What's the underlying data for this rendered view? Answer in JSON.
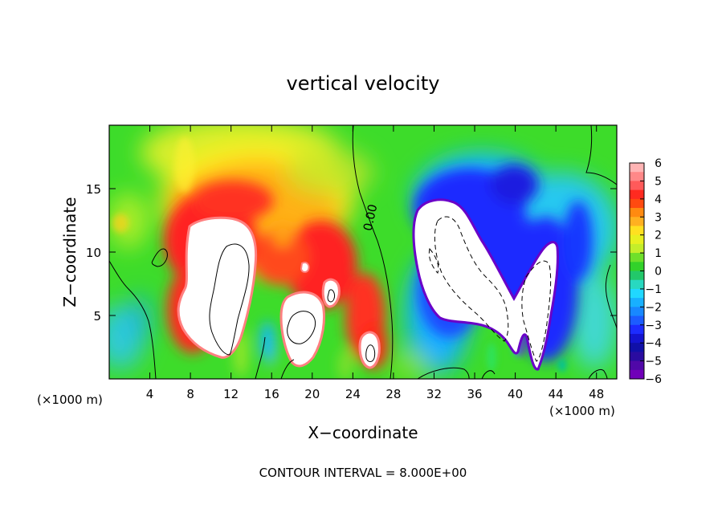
{
  "chart_data": {
    "type": "heatmap",
    "title": "vertical velocity",
    "xlabel": "X−coordinate",
    "ylabel": "Z−coordinate",
    "x_unit_label": "(×1000 m)",
    "z_unit_label": "(×1000 m)",
    "xlim": [
      0,
      50
    ],
    "ylim": [
      0,
      20
    ],
    "x_ticks": [
      4,
      8,
      12,
      16,
      20,
      24,
      28,
      32,
      36,
      40,
      44,
      48
    ],
    "y_ticks": [
      5,
      10,
      15
    ],
    "colorbar": {
      "ticks": [
        "6",
        "5",
        "4",
        "3",
        "2",
        "1",
        "0",
        "−1",
        "−2",
        "−3",
        "−4",
        "−5",
        "−6"
      ],
      "range": [
        -6,
        6
      ]
    },
    "contour_label": "0.00",
    "footnote": "CONTOUR INTERVAL = 8.000E+00",
    "features": [
      {
        "kind": "updraft_core",
        "x": 13,
        "z": 9,
        "w_max": 8,
        "note": "white saturated region, solid contour at 8"
      },
      {
        "kind": "updraft_core",
        "x": 19.5,
        "z": 5,
        "w_max": 8
      },
      {
        "kind": "updraft_core",
        "x": 25.5,
        "z": 2,
        "w_max": 8
      },
      {
        "kind": "downdraft_core",
        "x": 35,
        "z": 9,
        "w_min": -8,
        "note": "white saturated region, dashed contour at -8"
      },
      {
        "kind": "downdraft_core",
        "x": 42,
        "z": 6,
        "w_min": -8
      }
    ]
  }
}
